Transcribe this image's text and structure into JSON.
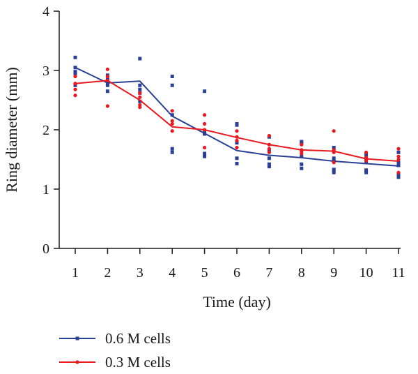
{
  "chart_data": {
    "type": "line",
    "xlabel": "Time (day)",
    "ylabel": "Ring diameter (mm)",
    "x": [
      1,
      2,
      3,
      4,
      5,
      6,
      7,
      8,
      9,
      10,
      11
    ],
    "xticks": [
      "1",
      "2",
      "3",
      "4",
      "5",
      "6",
      "7",
      "8",
      "9",
      "10",
      "11"
    ],
    "ylim": [
      0,
      4
    ],
    "yticks": [
      "0",
      "1",
      "2",
      "3",
      "4"
    ],
    "grid": false,
    "legend_position": "bottom-left",
    "series": [
      {
        "name": "0.6 M cells",
        "color": "#2b3f95",
        "marker": "square",
        "mean": [
          3.05,
          2.79,
          2.82,
          2.23,
          1.94,
          1.65,
          1.57,
          1.53,
          1.47,
          1.43,
          1.39
        ],
        "points": [
          [
            3.22,
            3.05,
            2.98,
            2.95,
            2.75
          ],
          [
            2.92,
            2.85,
            2.78,
            2.75,
            2.65
          ],
          [
            3.2,
            2.75,
            2.68,
            2.62,
            2.48
          ],
          [
            2.9,
            2.75,
            2.25,
            1.68,
            1.62
          ],
          [
            2.65,
            1.95,
            1.93,
            1.6,
            1.55
          ],
          [
            2.1,
            2.08,
            1.78,
            1.52,
            1.43
          ],
          [
            1.88,
            1.65,
            1.52,
            1.42,
            1.38
          ],
          [
            1.8,
            1.78,
            1.55,
            1.42,
            1.35
          ],
          [
            1.7,
            1.52,
            1.48,
            1.33,
            1.28
          ],
          [
            1.58,
            1.52,
            1.45,
            1.32,
            1.28
          ],
          [
            1.62,
            1.45,
            1.4,
            1.25,
            1.2
          ]
        ]
      },
      {
        "name": "0.3 M cells",
        "color": "#e8191f",
        "marker": "circle",
        "mean": [
          2.78,
          2.83,
          2.5,
          2.05,
          2.0,
          1.87,
          1.75,
          1.66,
          1.64,
          1.51,
          1.47
        ],
        "points": [
          [
            2.9,
            2.78,
            2.68,
            2.58
          ],
          [
            3.02,
            2.9,
            2.83,
            2.4
          ],
          [
            2.62,
            2.55,
            2.42,
            2.38
          ],
          [
            2.32,
            2.15,
            2.1,
            1.98
          ],
          [
            2.25,
            2.1,
            2.0,
            1.7
          ],
          [
            1.98,
            1.88,
            1.82,
            1.7
          ],
          [
            1.9,
            1.75,
            1.68,
            1.62
          ],
          [
            1.75,
            1.66,
            1.64,
            1.6
          ],
          [
            1.98,
            1.66,
            1.62,
            1.45
          ],
          [
            1.62,
            1.53,
            1.5,
            1.48
          ],
          [
            1.68,
            1.55,
            1.5,
            1.28
          ]
        ]
      }
    ]
  }
}
